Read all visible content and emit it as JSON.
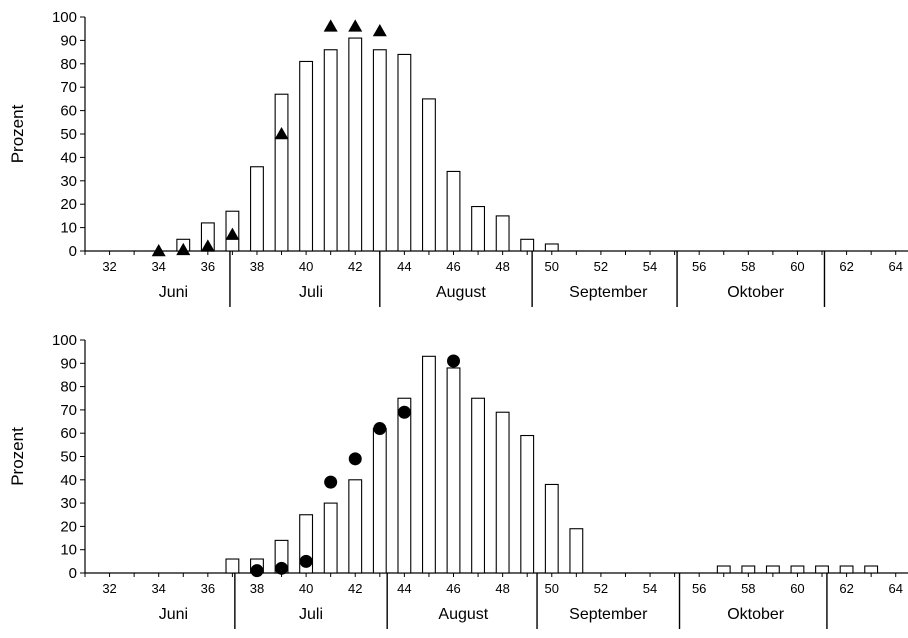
{
  "chart_data": [
    {
      "type": "bar",
      "title": "",
      "ylabel": "Prozent",
      "xlabel": "",
      "ylim": [
        0,
        100
      ],
      "yticks": [
        0,
        10,
        20,
        30,
        40,
        50,
        60,
        70,
        80,
        90,
        100
      ],
      "xlim": [
        31,
        64.5
      ],
      "xticks": [
        32,
        34,
        36,
        38,
        40,
        42,
        44,
        46,
        48,
        50,
        52,
        54,
        56,
        58,
        60,
        62,
        64
      ],
      "months": [
        {
          "label": "Juni",
          "center": 34.6
        },
        {
          "label": "Juli",
          "center": 40.2
        },
        {
          "label": "August",
          "center": 46.3
        },
        {
          "label": "September",
          "center": 52.3
        },
        {
          "label": "Oktober",
          "center": 58.3
        }
      ],
      "month_boundaries": [
        36.9,
        43.0,
        49.2,
        55.1,
        61.1
      ],
      "bar_series": {
        "x": [
          35,
          36,
          37,
          38,
          39,
          40,
          41,
          42,
          43,
          44,
          45,
          46,
          47,
          48,
          49,
          50
        ],
        "values": [
          5,
          12,
          17,
          36,
          67,
          81,
          86,
          91,
          86,
          84,
          65,
          34,
          19,
          15,
          5,
          3
        ]
      },
      "marker_series": {
        "marker": "triangle",
        "x": [
          34,
          35,
          36,
          37,
          39,
          41,
          42,
          43
        ],
        "values": [
          0,
          0.5,
          2,
          7,
          50,
          96,
          96,
          94
        ]
      }
    },
    {
      "type": "bar",
      "title": "",
      "ylabel": "Prozent",
      "xlabel": "",
      "ylim": [
        0,
        100
      ],
      "yticks": [
        0,
        10,
        20,
        30,
        40,
        50,
        60,
        70,
        80,
        90,
        100
      ],
      "xlim": [
        31,
        64.5
      ],
      "xticks": [
        32,
        34,
        36,
        38,
        40,
        42,
        44,
        46,
        48,
        50,
        52,
        54,
        56,
        58,
        60,
        62,
        64
      ],
      "months": [
        {
          "label": "Juni",
          "center": 34.6
        },
        {
          "label": "Juli",
          "center": 40.2
        },
        {
          "label": "August",
          "center": 46.4
        },
        {
          "label": "September",
          "center": 52.3
        },
        {
          "label": "Oktober",
          "center": 58.3
        }
      ],
      "month_boundaries": [
        37.1,
        43.3,
        49.4,
        55.2,
        61.2
      ],
      "bar_series": {
        "x": [
          37,
          38,
          39,
          40,
          41,
          42,
          43,
          44,
          45,
          46,
          47,
          48,
          49,
          50,
          51,
          57,
          58,
          59,
          60,
          61,
          62,
          63
        ],
        "values": [
          6,
          6,
          14,
          25,
          30,
          40,
          62,
          75,
          93,
          88,
          75,
          69,
          59,
          38,
          19,
          3,
          3,
          3,
          3,
          3,
          3,
          3
        ]
      },
      "marker_series": {
        "marker": "circle",
        "x": [
          38,
          39,
          40,
          41,
          42,
          43,
          44,
          46
        ],
        "values": [
          1,
          2,
          5,
          39,
          49,
          62,
          69,
          91
        ]
      }
    }
  ]
}
